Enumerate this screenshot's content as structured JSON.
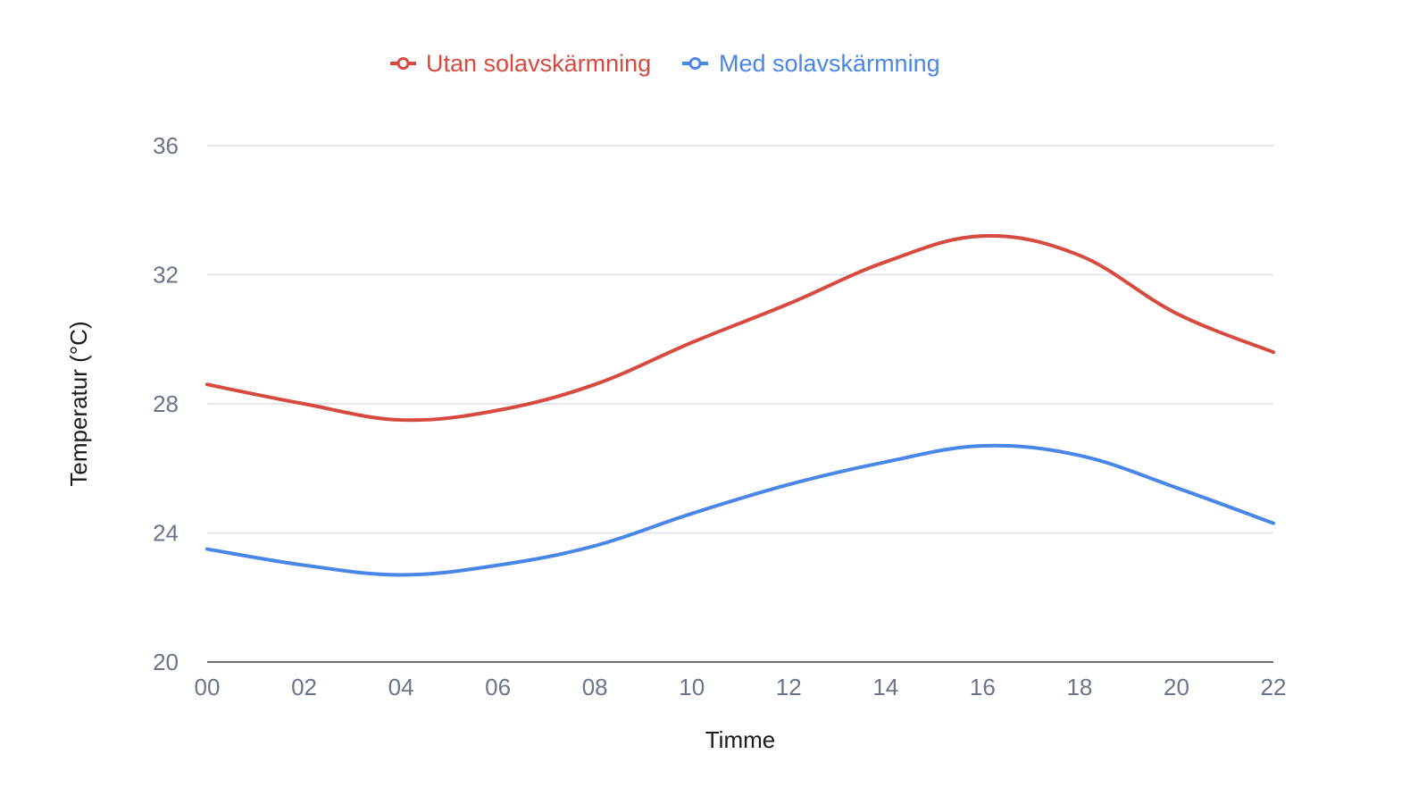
{
  "chart_data": {
    "type": "line",
    "title": "",
    "xlabel": "Timme",
    "ylabel": "Temperatur (°C)",
    "categories": [
      "00",
      "02",
      "04",
      "06",
      "08",
      "10",
      "12",
      "14",
      "16",
      "18",
      "20",
      "22"
    ],
    "yticks": [
      20,
      24,
      28,
      32,
      36
    ],
    "ylim": [
      20,
      36
    ],
    "grid": true,
    "legend_position": "top-center",
    "series": [
      {
        "name": "Utan solavskärmning",
        "color": "#d64a3f",
        "values": [
          28.6,
          28.0,
          27.5,
          27.8,
          28.6,
          29.9,
          31.1,
          32.4,
          33.2,
          32.6,
          30.8,
          29.6
        ]
      },
      {
        "name": "Med solavskärmning",
        "color": "#4a86e8",
        "values": [
          23.5,
          23.0,
          22.7,
          23.0,
          23.6,
          24.6,
          25.5,
          26.2,
          26.7,
          26.4,
          25.4,
          24.3
        ]
      }
    ]
  }
}
